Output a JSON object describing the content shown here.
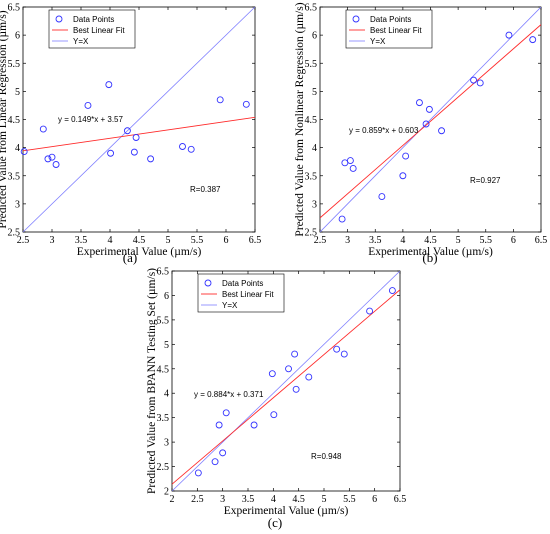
{
  "chart_data": [
    {
      "type": "scatter",
      "panel_label": "(a)",
      "xlabel": "Experimental Value (µm/s)",
      "ylabel": "Predicted Value from Linear Regression (µm/s)",
      "xlim": [
        2.5,
        6.5
      ],
      "ylim": [
        2.5,
        6.5
      ],
      "xticks": [
        "2.5",
        "3",
        "3.5",
        "4",
        "4.5",
        "5",
        "5.5",
        "6",
        "6.5"
      ],
      "yticks": [
        "2.5",
        "3",
        "3.5",
        "4",
        "4.5",
        "5",
        "5.5",
        "6",
        "6.5"
      ],
      "legend": {
        "position": "top-left",
        "entries": [
          "Data Points",
          "Best Linear Fit",
          "Y=X"
        ]
      },
      "equation": "y = 0.149*x + 3.57",
      "r_text": "R=0.387",
      "fit": {
        "slope": 0.149,
        "intercept": 3.57
      },
      "points": [
        {
          "x": 2.52,
          "y": 3.93
        },
        {
          "x": 2.85,
          "y": 4.33
        },
        {
          "x": 2.93,
          "y": 3.8
        },
        {
          "x": 3.0,
          "y": 3.83
        },
        {
          "x": 3.07,
          "y": 3.7
        },
        {
          "x": 3.62,
          "y": 4.75
        },
        {
          "x": 3.98,
          "y": 5.12
        },
        {
          "x": 4.01,
          "y": 3.9
        },
        {
          "x": 4.3,
          "y": 4.3
        },
        {
          "x": 4.45,
          "y": 4.18
        },
        {
          "x": 4.42,
          "y": 3.92
        },
        {
          "x": 4.7,
          "y": 3.8
        },
        {
          "x": 5.25,
          "y": 4.02
        },
        {
          "x": 5.4,
          "y": 3.97
        },
        {
          "x": 5.9,
          "y": 4.85
        },
        {
          "x": 6.35,
          "y": 4.77
        }
      ]
    },
    {
      "type": "scatter",
      "panel_label": "(b)",
      "xlabel": "Experimental Value (µm/s)",
      "ylabel": "Predicted Value from Nonlinear Regression (µm/s)",
      "xlim": [
        2.5,
        6.5
      ],
      "ylim": [
        2.5,
        6.5
      ],
      "xticks": [
        "2.5",
        "3",
        "3.5",
        "4",
        "4.5",
        "5",
        "5.5",
        "6",
        "6.5"
      ],
      "yticks": [
        "2.5",
        "3",
        "3.5",
        "4",
        "4.5",
        "5",
        "5.5",
        "6",
        "6.5"
      ],
      "legend": {
        "position": "top-left",
        "entries": [
          "Data Points",
          "Best Linear Fit",
          "Y=X"
        ]
      },
      "equation": "y = 0.859*x + 0.603",
      "r_text": "R=0.927",
      "fit": {
        "slope": 0.859,
        "intercept": 0.603
      },
      "points": [
        {
          "x": 2.9,
          "y": 2.73
        },
        {
          "x": 2.95,
          "y": 3.73
        },
        {
          "x": 3.05,
          "y": 3.77
        },
        {
          "x": 3.1,
          "y": 3.63
        },
        {
          "x": 3.62,
          "y": 3.13
        },
        {
          "x": 4.0,
          "y": 3.5
        },
        {
          "x": 4.05,
          "y": 3.85
        },
        {
          "x": 4.3,
          "y": 4.8
        },
        {
          "x": 4.42,
          "y": 4.42
        },
        {
          "x": 4.48,
          "y": 4.68
        },
        {
          "x": 4.7,
          "y": 4.3
        },
        {
          "x": 5.28,
          "y": 5.2
        },
        {
          "x": 5.4,
          "y": 5.15
        },
        {
          "x": 5.92,
          "y": 6.0
        },
        {
          "x": 6.35,
          "y": 5.92
        }
      ]
    },
    {
      "type": "scatter",
      "panel_label": "(c)",
      "xlabel": "Experimental Value (µm/s)",
      "ylabel": "Predicted Value from BPANN Testing Set (µm/s)",
      "xlim": [
        2,
        6.5
      ],
      "ylim": [
        2,
        6.5
      ],
      "xticks": [
        "2",
        "2.5",
        "3",
        "3.5",
        "4",
        "4.5",
        "5",
        "5.5",
        "6",
        "6.5"
      ],
      "yticks": [
        "2",
        "2.5",
        "3",
        "3.5",
        "4",
        "4.5",
        "5",
        "5.5",
        "6",
        "6.5"
      ],
      "legend": {
        "position": "top-left",
        "entries": [
          "Data Points",
          "Best Linear Fit",
          "Y=X"
        ]
      },
      "equation": "y = 0.884*x + 0.371",
      "r_text": "R=0.948",
      "fit": {
        "slope": 0.884,
        "intercept": 0.371
      },
      "points": [
        {
          "x": 2.52,
          "y": 2.37
        },
        {
          "x": 2.85,
          "y": 2.6
        },
        {
          "x": 2.93,
          "y": 3.35
        },
        {
          "x": 3.0,
          "y": 2.78
        },
        {
          "x": 3.07,
          "y": 3.6
        },
        {
          "x": 3.62,
          "y": 3.35
        },
        {
          "x": 3.98,
          "y": 4.4
        },
        {
          "x": 4.01,
          "y": 3.56
        },
        {
          "x": 4.3,
          "y": 4.5
        },
        {
          "x": 4.42,
          "y": 4.8
        },
        {
          "x": 4.45,
          "y": 4.08
        },
        {
          "x": 4.7,
          "y": 4.33
        },
        {
          "x": 5.25,
          "y": 4.9
        },
        {
          "x": 5.4,
          "y": 4.8
        },
        {
          "x": 5.9,
          "y": 5.68
        },
        {
          "x": 6.35,
          "y": 6.1
        }
      ]
    }
  ],
  "colors": {
    "points": "#3333ff",
    "fit": "#ff2b2b",
    "identity": "#7f7fff",
    "axis": "#000000"
  }
}
